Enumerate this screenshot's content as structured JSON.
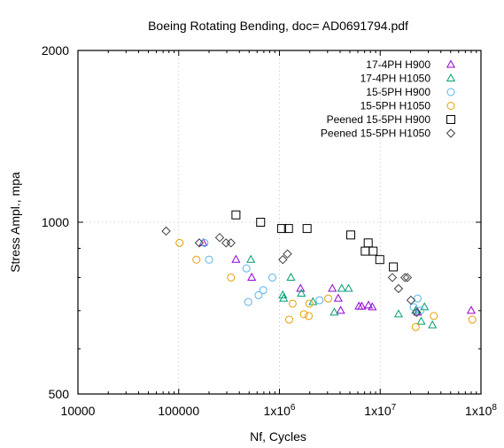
{
  "chart_data": {
    "type": "scatter",
    "title": "Boeing Rotating Bending, doc= AD0691794.pdf",
    "xlabel": "Nf, Cycles",
    "ylabel": "Stress Ampl., mpa",
    "x_scale": "log",
    "y_scale": "log",
    "xlim": [
      10000,
      100000000
    ],
    "ylim": [
      500,
      2000
    ],
    "grid": true,
    "legend_position": "top-right",
    "x_ticks": [
      {
        "value": 10000,
        "label": "10000"
      },
      {
        "value": 100000,
        "label": "100000"
      },
      {
        "value": 1000000,
        "label": "1x10^6"
      },
      {
        "value": 10000000,
        "label": "1x10^7"
      },
      {
        "value": 100000000,
        "label": "1x10^8"
      }
    ],
    "y_ticks": [
      {
        "value": 500,
        "label": "500"
      },
      {
        "value": 1000,
        "label": "1000"
      },
      {
        "value": 2000,
        "label": "2000"
      }
    ],
    "series": [
      {
        "name": "17-4PH H900",
        "marker": "triangle",
        "color": "#9400d3",
        "points": [
          [
            175000,
            920
          ],
          [
            370000,
            860
          ],
          [
            530000,
            800
          ],
          [
            1620000,
            765
          ],
          [
            3350000,
            765
          ],
          [
            3830000,
            735
          ],
          [
            4050000,
            700
          ],
          [
            6150000,
            712
          ],
          [
            6550000,
            712
          ],
          [
            7650000,
            715
          ],
          [
            8350000,
            710
          ],
          [
            23500000,
            695
          ],
          [
            80000000,
            700
          ]
        ]
      },
      {
        "name": "17-4PH H1050",
        "marker": "triangle",
        "color": "#009e73",
        "points": [
          [
            520000,
            860
          ],
          [
            1080000,
            745
          ],
          [
            1100000,
            735
          ],
          [
            1300000,
            800
          ],
          [
            1650000,
            750
          ],
          [
            2150000,
            725
          ],
          [
            3500000,
            695
          ],
          [
            4150000,
            765
          ],
          [
            4850000,
            765
          ],
          [
            15200000,
            690
          ],
          [
            22500000,
            700
          ],
          [
            25500000,
            670
          ],
          [
            27500000,
            710
          ],
          [
            33000000,
            660
          ]
        ]
      },
      {
        "name": "15-5PH H900",
        "marker": "circle",
        "color": "#56b4e9",
        "points": [
          [
            180000,
            920
          ],
          [
            200000,
            860
          ],
          [
            470000,
            830
          ],
          [
            490000,
            725
          ],
          [
            620000,
            745
          ],
          [
            690000,
            760
          ],
          [
            850000,
            800
          ],
          [
            2500000,
            730
          ],
          [
            21500000,
            710
          ],
          [
            23500000,
            735
          ],
          [
            25000000,
            700
          ]
        ]
      },
      {
        "name": "15-5PH H1050",
        "marker": "circle",
        "color": "#e69f00",
        "points": [
          [
            102000,
            920
          ],
          [
            150000,
            860
          ],
          [
            330000,
            800
          ],
          [
            1250000,
            675
          ],
          [
            1350000,
            720
          ],
          [
            1750000,
            690
          ],
          [
            1950000,
            685
          ],
          [
            1980000,
            720
          ],
          [
            3050000,
            735
          ],
          [
            22500000,
            655
          ],
          [
            34000000,
            685
          ],
          [
            82000000,
            675
          ]
        ]
      },
      {
        "name": "Peened 15-5PH H900",
        "marker": "square",
        "color": "#000000",
        "points": [
          [
            370000,
            1030
          ],
          [
            650000,
            1000
          ],
          [
            1050000,
            975
          ],
          [
            1230000,
            975
          ],
          [
            1880000,
            975
          ],
          [
            5100000,
            950
          ],
          [
            7100000,
            890
          ],
          [
            7600000,
            920
          ],
          [
            8500000,
            890
          ],
          [
            9900000,
            860
          ],
          [
            13500000,
            835
          ]
        ]
      },
      {
        "name": "Peened 15-5PH H1050",
        "marker": "diamond",
        "color": "#404040",
        "points": [
          [
            75000,
            965
          ],
          [
            160000,
            920
          ],
          [
            255000,
            940
          ],
          [
            295000,
            920
          ],
          [
            330000,
            920
          ],
          [
            1080000,
            860
          ],
          [
            1200000,
            880
          ],
          [
            13200000,
            800
          ],
          [
            15200000,
            765
          ],
          [
            17600000,
            800
          ],
          [
            18600000,
            800
          ],
          [
            20200000,
            730
          ],
          [
            23000000,
            695
          ]
        ]
      }
    ]
  }
}
